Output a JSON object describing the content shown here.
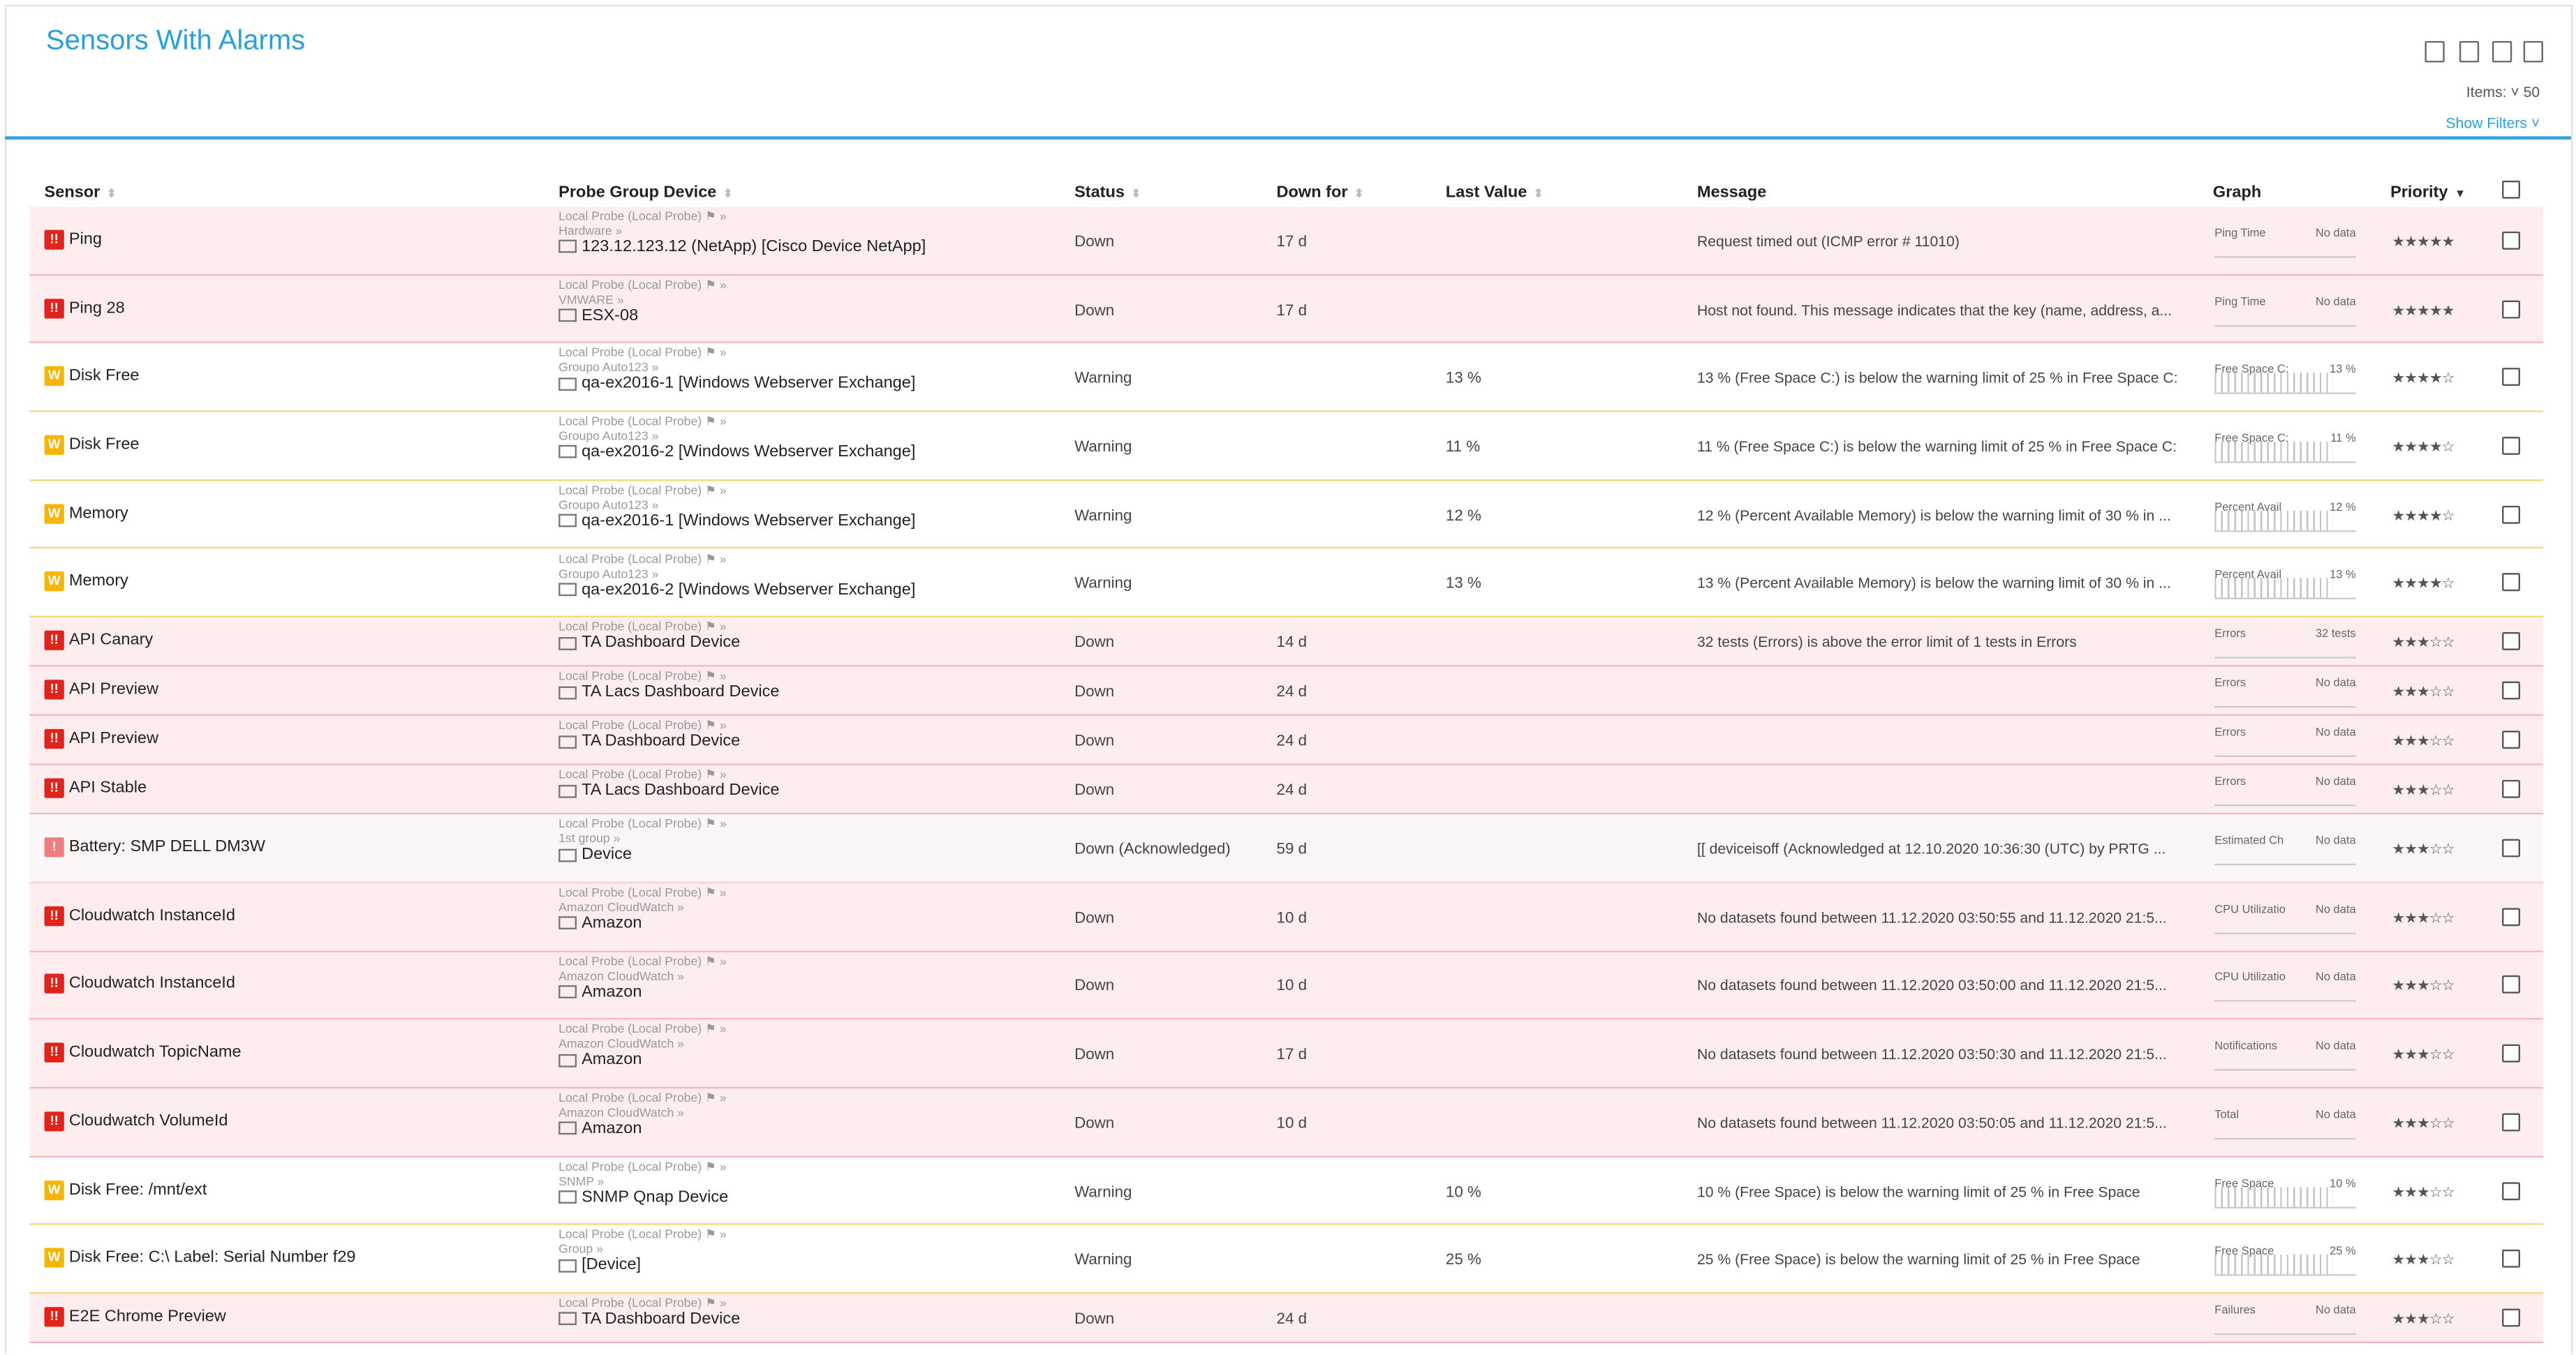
{
  "header": {
    "title": "Sensors With Alarms",
    "items_label": "Items:",
    "items_value": "50",
    "filters": "Show Filters"
  },
  "table": {
    "columns": [
      "Sensor",
      "Probe Group Device",
      "Status",
      "Down for",
      "Last Value",
      "Message",
      "Graph",
      "Priority"
    ],
    "rows": [
      {
        "icon": "!!",
        "sensor": "Ping",
        "probe": "Local Probe (Local Probe)",
        "group": "Hardware",
        "device": "123.12.123.12 (NetApp) [Cisco Device NetApp]",
        "status": "Down",
        "down_for": "17 d",
        "message": "Request timed out (ICMP error # 11010)",
        "graph_label": "Ping Time",
        "graph_value": "No data",
        "priority": 5
      },
      {
        "icon": "!!",
        "sensor": "Ping 28",
        "probe": "Local Probe (Local Probe)",
        "group": "VMWARE",
        "device": "ESX-08",
        "status": "Down",
        "down_for": "17 d",
        "message": "Host not found. This message indicates that the key (name, address, a...",
        "graph_label": "Ping Time",
        "graph_value": "No data",
        "priority": 5
      },
      {
        "icon": "W",
        "sensor": "Disk Free",
        "probe": "Local Probe (Local Probe)",
        "group": "Groupo Auto123",
        "device": "qa-ex2016-1 [Windows Webserver Exchange]",
        "status": "Warning",
        "last_value": "13 %",
        "message": "13 % (Free Space C:) is below the warning limit of 25 % in Free Space C:",
        "graph_label": "Free Space C:",
        "graph_value": "13 %",
        "priority": 4
      },
      {
        "icon": "W",
        "sensor": "Disk Free",
        "probe": "Local Probe (Local Probe)",
        "group": "Groupo Auto123",
        "device": "qa-ex2016-2 [Windows Webserver Exchange]",
        "status": "Warning",
        "last_value": "11 %",
        "message": "11 % (Free Space C:) is below the warning limit of 25 % in Free Space C:",
        "graph_label": "Free Space C:",
        "graph_value": "11 %",
        "priority": 4
      },
      {
        "icon": "W",
        "sensor": "Memory",
        "probe": "Local Probe (Local Probe)",
        "group": "Groupo Auto123",
        "device": "qa-ex2016-1 [Windows Webserver Exchange]",
        "status": "Warning",
        "last_value": "12 %",
        "message": "12 % (Percent Available Memory) is below the warning limit of 30 % in ...",
        "graph_label": "Percent Avail",
        "graph_value": "12 %",
        "priority": 4
      },
      {
        "icon": "W",
        "sensor": "Memory",
        "probe": "Local Probe (Local Probe)",
        "group": "Groupo Auto123",
        "device": "qa-ex2016-2 [Windows Webserver Exchange]",
        "status": "Warning",
        "last_value": "13 %",
        "message": "13 % (Percent Available Memory) is below the warning limit of 30 % in ...",
        "graph_label": "Percent Avail",
        "graph_value": "13 %",
        "priority": 4
      },
      {
        "icon": "!!",
        "sensor": "API Canary",
        "probe": "Local Probe (Local Probe)",
        "device": "TA Dashboard Device",
        "status": "Down",
        "down_for": "14 d",
        "message": "32 tests (Errors) is above the error limit of 1 tests in Errors",
        "graph_label": "Errors",
        "graph_value": "32 tests",
        "priority": 3
      },
      {
        "icon": "!!",
        "sensor": "API Preview",
        "probe": "Local Probe (Local Probe)",
        "device": "TA Lacs Dashboard Device",
        "status": "Down",
        "down_for": "24 d",
        "graph_label": "Errors",
        "graph_value": "No data",
        "priority": 3
      },
      {
        "icon": "!!",
        "sensor": "API Preview",
        "probe": "Local Probe (Local Probe)",
        "device": "TA Dashboard Device",
        "status": "Down",
        "down_for": "24 d",
        "graph_label": "Errors",
        "graph_value": "No data",
        "priority": 3
      },
      {
        "icon": "!!",
        "sensor": "API Stable",
        "probe": "Local Probe (Local Probe)",
        "device": "TA Lacs Dashboard Device",
        "status": "Down",
        "down_for": "24 d",
        "graph_label": "Errors",
        "graph_value": "No data",
        "priority": 3
      },
      {
        "icon": "!",
        "sensor": "Battery: SMP DELL DM3W",
        "probe": "Local Probe (Local Probe)",
        "group": "1st group",
        "device": "Device",
        "status": "Down (Acknowledged)",
        "down_for": "59 d",
        "message": "[[ deviceisoff  (Acknowledged at 12.10.2020 10:36:30 (UTC) by PRTG ...",
        "graph_label": "Estimated Ch",
        "graph_value": "No data",
        "priority": 3
      },
      {
        "icon": "!!",
        "sensor": "Cloudwatch InstanceId",
        "probe": "Local Probe (Local Probe)",
        "group": "Amazon CloudWatch",
        "device": "Amazon",
        "status": "Down",
        "down_for": "10 d",
        "message": "No datasets found between 11.12.2020 03:50:55 and 11.12.2020 21:5...",
        "graph_label": "CPU Utilizatio",
        "graph_value": "No data",
        "priority": 3
      },
      {
        "icon": "!!",
        "sensor": "Cloudwatch InstanceId",
        "probe": "Local Probe (Local Probe)",
        "group": "Amazon CloudWatch",
        "device": "Amazon",
        "status": "Down",
        "down_for": "10 d",
        "message": "No datasets found between 11.12.2020 03:50:00 and 11.12.2020 21:5...",
        "graph_label": "CPU Utilizatio",
        "graph_value": "No data",
        "priority": 3
      },
      {
        "icon": "!!",
        "sensor": "Cloudwatch TopicName",
        "probe": "Local Probe (Local Probe)",
        "group": "Amazon CloudWatch",
        "device": "Amazon",
        "status": "Down",
        "down_for": "17 d",
        "message": "No datasets found between 11.12.2020 03:50:30 and 11.12.2020 21:5...",
        "graph_label": "Notifications",
        "graph_value": "No data",
        "priority": 3
      },
      {
        "icon": "!!",
        "sensor": "Cloudwatch VolumeId",
        "probe": "Local Probe (Local Probe)",
        "group": "Amazon CloudWatch",
        "device": "Amazon",
        "status": "Down",
        "down_for": "10 d",
        "message": "No datasets found between 11.12.2020 03:50:05 and 11.12.2020 21:5...",
        "graph_label": "Total",
        "graph_value": "No data",
        "priority": 3
      },
      {
        "icon": "W",
        "sensor": "Disk Free: /mnt/ext",
        "probe": "Local Probe (Local Probe)",
        "group": "SNMP",
        "device": "SNMP Qnap Device",
        "status": "Warning",
        "last_value": "10 %",
        "message": "10 % (Free Space) is below the warning limit of 25 % in Free Space",
        "graph_label": "Free Space",
        "graph_value": "10 %",
        "priority": 3
      },
      {
        "icon": "W",
        "sensor": "Disk Free: C:\\ Label: Serial Number f29",
        "probe": "Local Probe (Local Probe)",
        "group": "Group",
        "device": "[Device]",
        "status": "Warning",
        "last_value": "25 %",
        "message": "25 % (Free Space) is below the warning limit of 25 % in Free Space",
        "graph_label": "Free Space",
        "graph_value": "25 %",
        "priority": 3
      },
      {
        "icon": "!!",
        "sensor": "E2E Chrome Preview",
        "probe": "Local Probe (Local Probe)",
        "device": "TA Dashboard Device",
        "status": "Down",
        "down_for": "24 d",
        "graph_label": "Failures",
        "graph_value": "No data",
        "priority": 3
      }
    ]
  }
}
